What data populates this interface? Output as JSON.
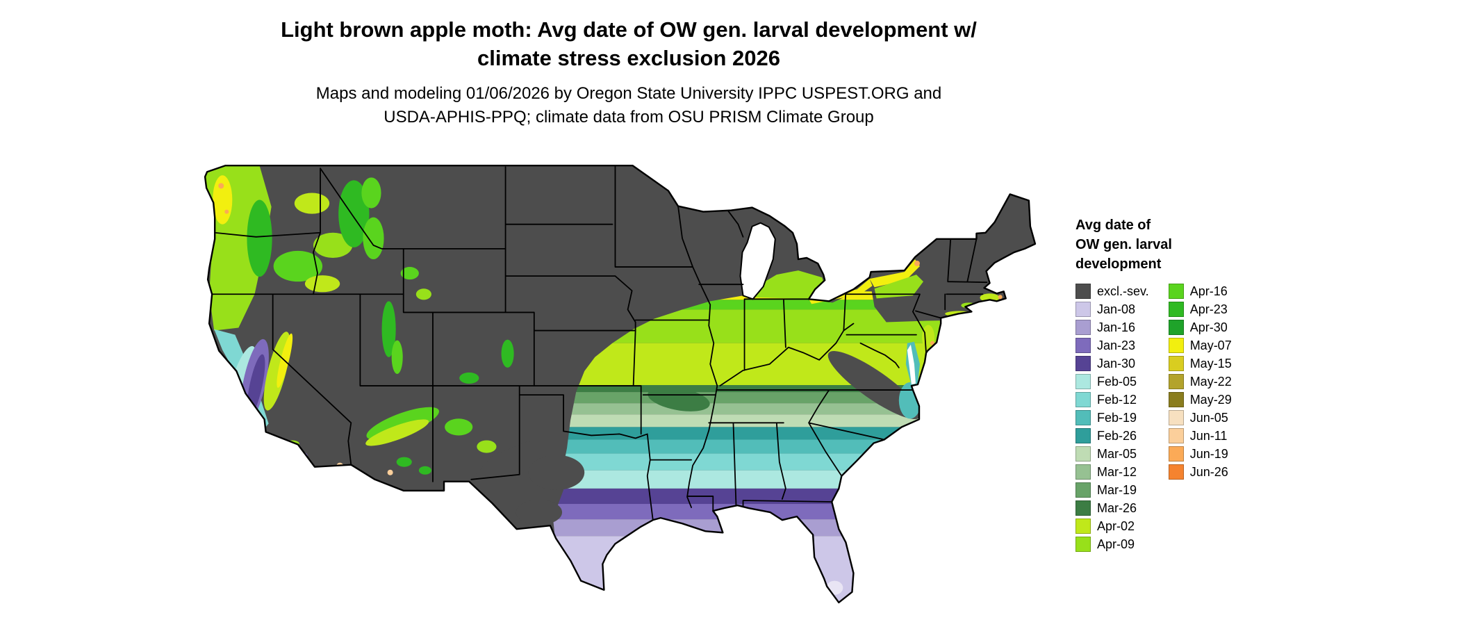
{
  "title": {
    "line1": "Light brown apple moth: Avg date of OW gen. larval development w/",
    "line2": "climate stress exclusion 2026"
  },
  "subtitle": {
    "line1": "Maps and modeling 01/06/2026 by Oregon State University IPPC USPEST.ORG and",
    "line2": "USDA-APHIS-PPQ; climate data from OSU PRISM Climate Group"
  },
  "legend": {
    "title_line1": "Avg date of",
    "title_line2": "OW gen. larval",
    "title_line3": "development",
    "column1": [
      {
        "label": "excl.-sev.",
        "color": "#4d4d4d"
      },
      {
        "label": "Jan-08",
        "color": "#cdc7e8"
      },
      {
        "label": "Jan-16",
        "color": "#a99ed1"
      },
      {
        "label": "Jan-23",
        "color": "#7e6bbc"
      },
      {
        "label": "Jan-30",
        "color": "#564394"
      },
      {
        "label": "Feb-05",
        "color": "#ace8e0"
      },
      {
        "label": "Feb-12",
        "color": "#7fd8d3"
      },
      {
        "label": "Feb-19",
        "color": "#52bdb9"
      },
      {
        "label": "Feb-26",
        "color": "#2f9e9b"
      },
      {
        "label": "Mar-05",
        "color": "#bfdcb4"
      },
      {
        "label": "Mar-12",
        "color": "#96c192"
      },
      {
        "label": "Mar-19",
        "color": "#68a368"
      },
      {
        "label": "Mar-26",
        "color": "#3c7d44"
      },
      {
        "label": "Apr-02",
        "color": "#c0e81a"
      },
      {
        "label": "Apr-09",
        "color": "#98e01a"
      }
    ],
    "column2": [
      {
        "label": "Apr-16",
        "color": "#5ad41e"
      },
      {
        "label": "Apr-23",
        "color": "#2fba22"
      },
      {
        "label": "Apr-30",
        "color": "#1fa32a"
      },
      {
        "label": "May-07",
        "color": "#f2ef0f"
      },
      {
        "label": "May-15",
        "color": "#d9cd20"
      },
      {
        "label": "May-22",
        "color": "#b3a32c"
      },
      {
        "label": "May-29",
        "color": "#8a7d1e"
      },
      {
        "label": "Jun-05",
        "color": "#f7e0c0"
      },
      {
        "label": "Jun-11",
        "color": "#fbcf9b"
      },
      {
        "label": "Jun-19",
        "color": "#fbaa57"
      },
      {
        "label": "Jun-26",
        "color": "#f5832f"
      }
    ]
  }
}
